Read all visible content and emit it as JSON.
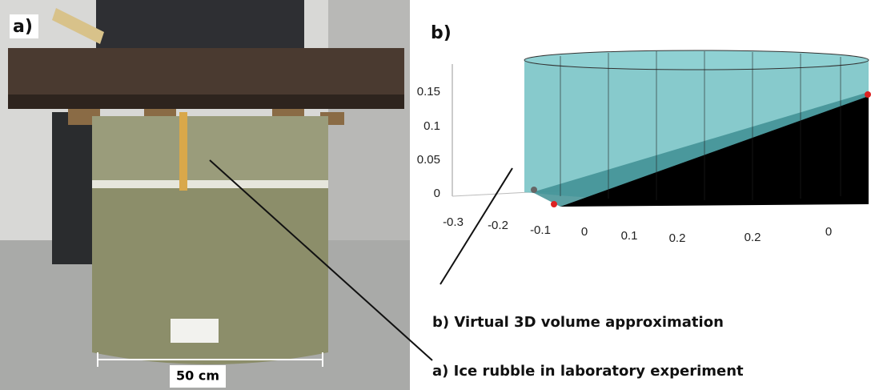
{
  "panel_a": {
    "label": "a)",
    "scale_bar": "50 cm"
  },
  "panel_b": {
    "label": "b)",
    "y_ticks": [
      "0.15",
      "0.1",
      "0.05",
      "0"
    ],
    "x_ticks": [
      "-0.3",
      "-0.2",
      "-0.1",
      "0",
      "0.1",
      "0.2",
      "0.2",
      "0"
    ]
  },
  "captions": [
    "b) Virtual 3D volume approximation",
    "a) Ice rubble in laboratory experiment"
  ]
}
